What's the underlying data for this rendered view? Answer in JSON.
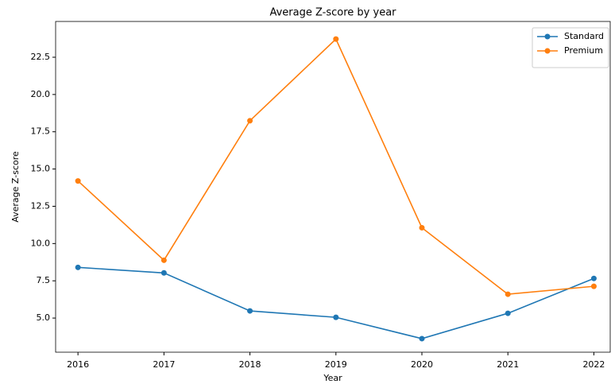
{
  "chart_data": {
    "type": "line",
    "title": "Average Z-score by year",
    "xlabel": "Year",
    "ylabel": "Average Z-score",
    "x": [
      2016,
      2017,
      2018,
      2019,
      2020,
      2021,
      2022
    ],
    "series": [
      {
        "name": "Standard",
        "color": "#1f77b4",
        "values": [
          8.4,
          8.03,
          5.48,
          5.05,
          3.62,
          5.32,
          7.66
        ]
      },
      {
        "name": "Premium",
        "color": "#ff7f0e",
        "values": [
          14.2,
          8.88,
          18.24,
          23.72,
          11.06,
          6.6,
          7.13
        ]
      }
    ],
    "xlim": [
      2015.74,
      2022.19
    ],
    "xticks": [
      2016,
      2017,
      2018,
      2019,
      2020,
      2021,
      2022
    ],
    "ylim": [
      2.71,
      24.9
    ],
    "yticks": [
      {
        "value": 5,
        "label": "5.0"
      },
      7.5,
      {
        "value": 10,
        "label": "10.0"
      },
      12.5,
      {
        "value": 15,
        "label": "15.0"
      },
      17.5,
      {
        "value": 20,
        "label": "20.0"
      },
      22.5
    ],
    "legend": "upper right",
    "grid": false
  }
}
